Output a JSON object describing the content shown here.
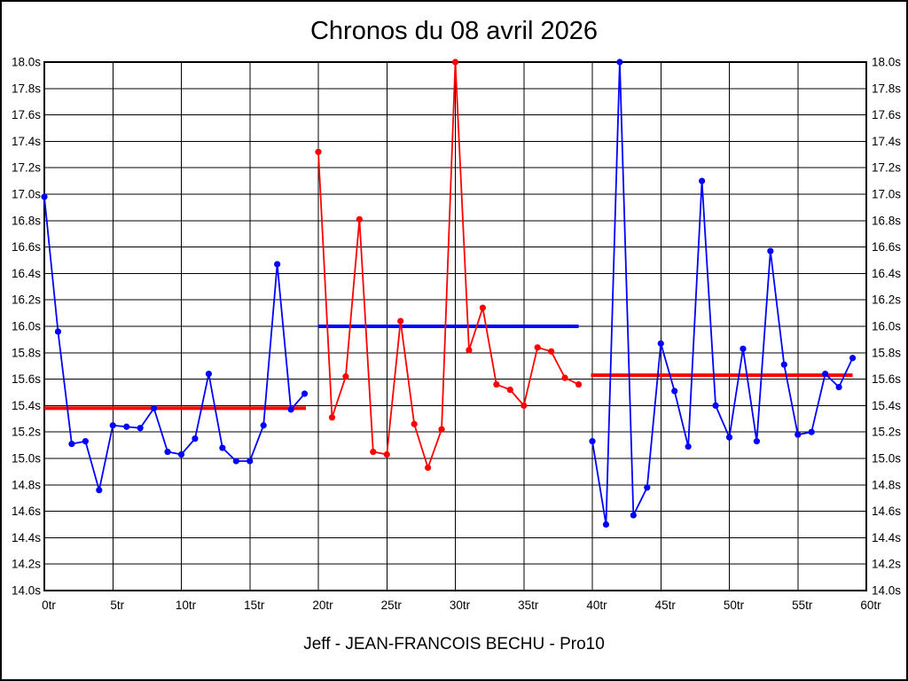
{
  "chart_data": {
    "type": "line",
    "title": "Chronos du 08 avril 2026",
    "footer": "Jeff - JEAN-FRANCOIS BECHU - Pro10",
    "x_tick_suffix": "tr",
    "y_tick_suffix": "s",
    "xlim": [
      0,
      60
    ],
    "x_tick_step": 5,
    "ylim": [
      14.0,
      18.0
    ],
    "y_tick_step": 0.2,
    "grid": true,
    "axis_color": "#000000",
    "colors": {
      "blue": "#0000ff",
      "red": "#ff0000"
    },
    "series": [
      {
        "name": "stint-1",
        "color": "#0000ff",
        "x_start": 0,
        "values": [
          16.98,
          15.96,
          15.11,
          15.13,
          14.76,
          15.25,
          15.24,
          15.23,
          15.38,
          15.05,
          15.03,
          15.15,
          15.64,
          15.08,
          14.98,
          14.98,
          15.25,
          16.47,
          15.37,
          15.49
        ]
      },
      {
        "name": "stint-2",
        "color": "#ff0000",
        "x_start": 20,
        "values": [
          17.32,
          15.31,
          15.62,
          16.81,
          15.05,
          15.03,
          16.04,
          15.26,
          14.93,
          15.22,
          18.0,
          15.82,
          16.14,
          15.56,
          15.52,
          15.4,
          15.84,
          15.81,
          15.61,
          15.56
        ]
      },
      {
        "name": "stint-3",
        "color": "#0000ff",
        "x_start": 40,
        "values": [
          15.13,
          14.5,
          18.0,
          14.57,
          14.78,
          15.87,
          15.51,
          15.09,
          17.1,
          15.4,
          15.16,
          15.83,
          15.13,
          16.57,
          15.71,
          15.18,
          15.2,
          15.64,
          15.54,
          15.76
        ]
      }
    ],
    "reference_lines": [
      {
        "name": "average-stint-1",
        "color": "#ff0000",
        "value": 15.38,
        "x_from": 0,
        "x_to": 19.1
      },
      {
        "name": "average-stint-2",
        "color": "#0000ff",
        "value": 16.0,
        "x_from": 20,
        "x_to": 39.0
      },
      {
        "name": "average-stint-3",
        "color": "#ff0000",
        "value": 15.63,
        "x_from": 39.9,
        "x_to": 59.0
      }
    ]
  }
}
